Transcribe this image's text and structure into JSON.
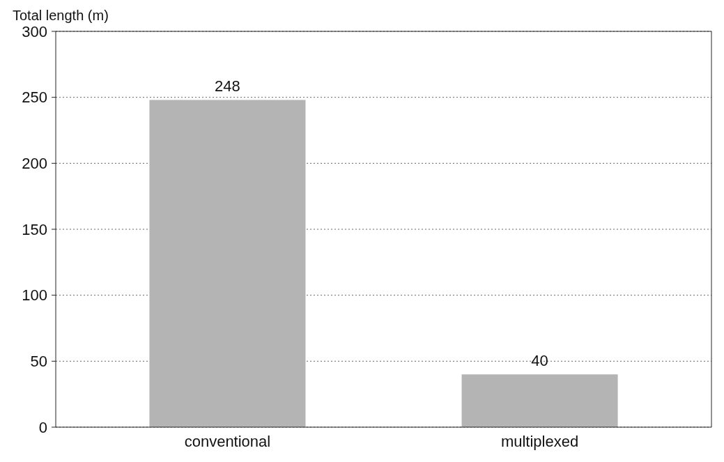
{
  "chart_data": {
    "type": "bar",
    "ylabel": "Total length (m)",
    "categories": [
      "conventional",
      "multiplexed"
    ],
    "values": [
      248,
      40
    ],
    "color": "#b4b4b4",
    "ylim": [
      0,
      300
    ],
    "yticks": [
      0,
      50,
      100,
      150,
      200,
      250,
      300
    ],
    "grid": "y",
    "data_labels": true
  }
}
